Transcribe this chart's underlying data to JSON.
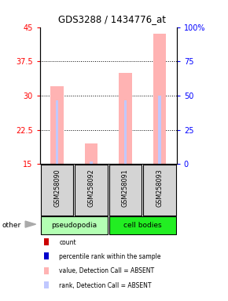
{
  "title": "GDS3288 / 1434776_at",
  "samples": [
    "GSM258090",
    "GSM258092",
    "GSM258091",
    "GSM258093"
  ],
  "ylim_left": [
    15,
    45
  ],
  "ylim_right": [
    0,
    100
  ],
  "yticks_left": [
    15,
    22.5,
    30,
    37.5,
    45
  ],
  "yticks_right": [
    0,
    25,
    50,
    75,
    100
  ],
  "ytick_labels_left": [
    "15",
    "22.5",
    "30",
    "37.5",
    "45"
  ],
  "ytick_labels_right": [
    "0",
    "25",
    "50",
    "75",
    "100%"
  ],
  "bar_values": [
    32.0,
    19.5,
    35.0,
    43.5
  ],
  "rank_values": [
    29.0,
    15.5,
    29.0,
    30.0
  ],
  "bar_color_absent": "#ffb3b3",
  "rank_color_absent": "#c0c8ff",
  "bar_width": 0.38,
  "rank_bar_width": 0.07,
  "pseudopodia_color": "#b3ffb3",
  "cell_bodies_color": "#22ee22",
  "legend_items": [
    {
      "label": "count",
      "color": "#cc0000"
    },
    {
      "label": "percentile rank within the sample",
      "color": "#0000cc"
    },
    {
      "label": "value, Detection Call = ABSENT",
      "color": "#ffb3b3"
    },
    {
      "label": "rank, Detection Call = ABSENT",
      "color": "#c0c8ff"
    }
  ]
}
